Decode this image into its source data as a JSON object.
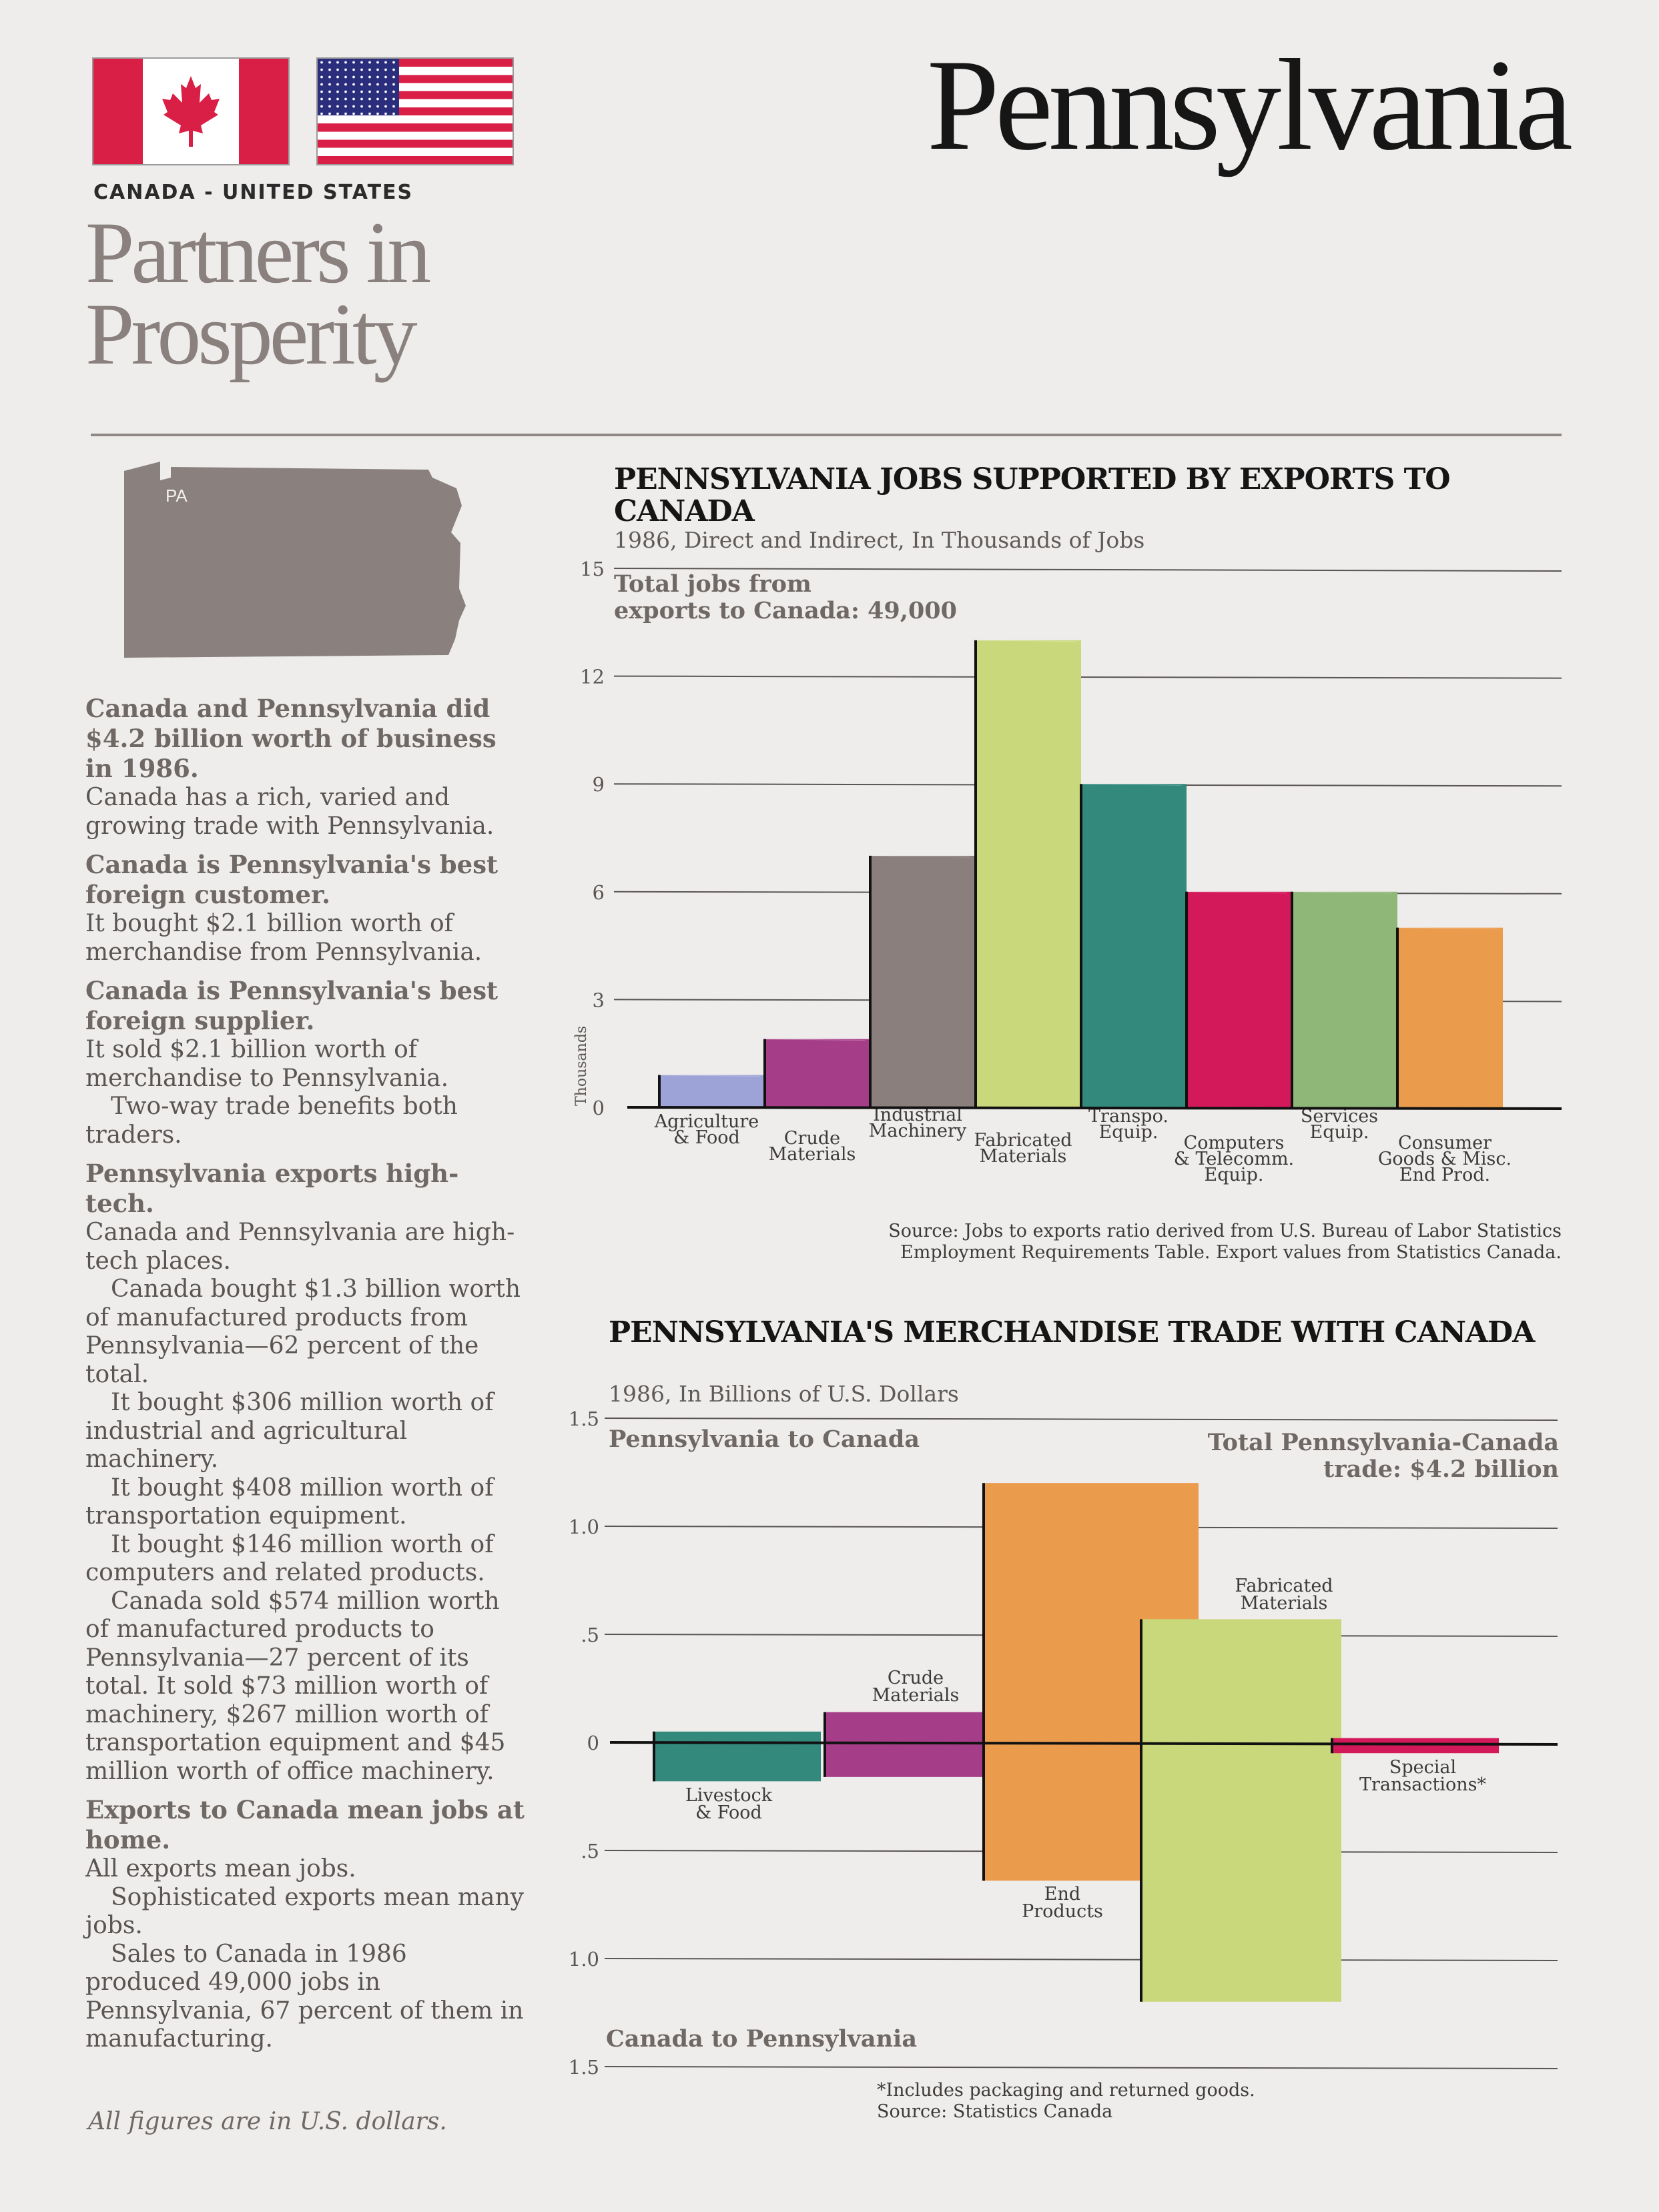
{
  "header": {
    "state": "Pennsylvania",
    "kicker": "CANADA - UNITED STATES",
    "slogan_line1": "Partners in",
    "slogan_line2": "Prosperity",
    "flags": [
      "canada-flag",
      "us-flag"
    ],
    "map_label": "PA"
  },
  "sidebar": {
    "h1": "Canada and Pennsylvania did $4.2 billion worth of business in 1986.",
    "p1": "Canada has a rich, varied and growing trade with Pennsylvania.",
    "h2": "Canada is Pennsylvania's best foreign customer.",
    "p2": "It bought $2.1 billion worth of merchandise from Pennsylvania.",
    "h3": "Canada is Pennsylvania's best foreign supplier.",
    "p3": "It sold $2.1 billion worth of merchandise to Pennsylvania.",
    "p3b": "Two-way trade benefits both traders.",
    "h4": "Pennsylvania exports high-tech.",
    "p4": "Canada and Pennsylvania are high-tech places.",
    "p4b": "Canada bought $1.3 billion worth of manufactured products from Pennsylvania—62 percent of the total.",
    "p4c": "It bought $306 million worth of industrial and agricultural machinery.",
    "p4d": "It bought $408 million worth of transportation equipment.",
    "p4e": "It bought $146 million worth of computers and related products.",
    "p4f": "Canada sold $574 million worth of manufactured products to Pennsylvania—27 percent of its total. It sold $73 million worth of machinery, $267 million worth of transportation equipment and $45 million worth of office machinery.",
    "h5": "Exports to Canada mean jobs at home.",
    "p5": "All exports mean jobs.",
    "p5b": "Sophisticated exports mean many jobs.",
    "p5c": "Sales to Canada in 1986 produced 49,000 jobs in Pennsylvania, 67 percent of them in manufacturing.",
    "footnote": "All figures are in U.S. dollars."
  },
  "chart1": {
    "title": "PENNSYLVANIA JOBS SUPPORTED BY EXPORTS TO CANADA",
    "subtitle": "1986, Direct and Indirect, In Thousands of Jobs",
    "total_line1": "Total jobs from",
    "total_line2": "exports to Canada: 49,000",
    "source_line1": "Source: Jobs to exports ratio derived from U.S. Bureau of Labor Statistics",
    "source_line2": "Employment Requirements Table. Export values from Statistics Canada."
  },
  "chart2": {
    "title": "PENNSYLVANIA'S MERCHANDISE TRADE WITH CANADA",
    "subtitle": "1986, In Billions of U.S. Dollars",
    "upper_label": "Pennsylvania to Canada",
    "total_line1": "Total Pennsylvania-Canada",
    "total_line2": "trade: $4.2 billion",
    "lower_label": "Canada to Pennsylvania",
    "footnote": "*Includes packaging and returned goods.",
    "source": "Source: Statistics Canada"
  },
  "chart_data": [
    {
      "type": "bar",
      "title": "PENNSYLVANIA JOBS SUPPORTED BY EXPORTS TO CANADA",
      "subtitle": "1986, Direct and Indirect, In Thousands of Jobs",
      "ylabel": "Thousands",
      "ylim": [
        0,
        15
      ],
      "yticks": [
        "0",
        "3",
        "6",
        "9",
        "12",
        "15"
      ],
      "grid": true,
      "categories": [
        [
          "Agriculture",
          "& Food"
        ],
        [
          "Crude",
          "Materials"
        ],
        [
          "Industrial",
          "Machinery"
        ],
        [
          "Fabricated",
          "Materials"
        ],
        [
          "Transpo.",
          "Equip."
        ],
        [
          "Computers",
          "& Telecomm.",
          "Equip."
        ],
        [
          "Services",
          "Equip."
        ],
        [
          "Consumer",
          "Goods & Misc.",
          "End Prod."
        ]
      ],
      "values": [
        0.9,
        1.9,
        7.0,
        13.0,
        9.0,
        6.0,
        6.0,
        5.0
      ],
      "colors": [
        "#9da3d6",
        "#a63d89",
        "#8a7f7c",
        "#c9d87a",
        "#32897c",
        "#d4195a",
        "#8fb878",
        "#ea9b4c"
      ]
    },
    {
      "type": "bar",
      "title": "PENNSYLVANIA'S MERCHANDISE TRADE WITH CANADA",
      "subtitle": "1986, In Billions of U.S. Dollars",
      "ylim": [
        -1.5,
        1.5
      ],
      "yticks": [
        "1.5",
        "1.0",
        ".5",
        "0",
        ".5",
        "1.0",
        "1.5"
      ],
      "grid": true,
      "categories": [
        [
          "Livestock",
          "& Food"
        ],
        [
          "Crude",
          "Materials"
        ],
        [
          "End",
          "Products"
        ],
        [
          "Fabricated",
          "Materials"
        ],
        [
          "Special",
          "Transactions*"
        ]
      ],
      "series": [
        {
          "name": "Pennsylvania to Canada",
          "values": [
            0.05,
            0.14,
            1.2,
            0.57,
            0.02
          ]
        },
        {
          "name": "Canada to Pennsylvania",
          "values": [
            0.18,
            0.16,
            0.64,
            1.2,
            0.05
          ]
        }
      ],
      "colors": [
        "#32897c",
        "#a63d89",
        "#ea9b4c",
        "#c9d87a",
        "#d4195a"
      ]
    }
  ]
}
